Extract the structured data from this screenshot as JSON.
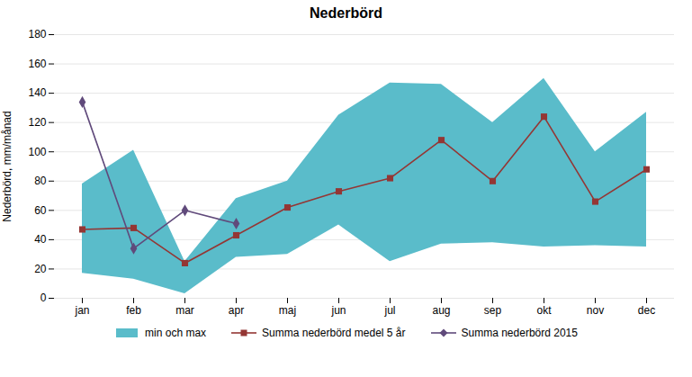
{
  "chart_data": {
    "type": "line",
    "title": "Nederbörd",
    "ylabel": "Nederbörd, mm/månad",
    "categories": [
      "jan",
      "feb",
      "mar",
      "apr",
      "maj",
      "jun",
      "jul",
      "aug",
      "sep",
      "okt",
      "nov",
      "dec"
    ],
    "series": [
      {
        "name": "min och max",
        "type": "area",
        "color": "#5abcca",
        "low": [
          17,
          13,
          3,
          28,
          30,
          50,
          25,
          37,
          38,
          35,
          36,
          35
        ],
        "high": [
          78,
          101,
          25,
          68,
          80,
          125,
          147,
          146,
          120,
          150,
          100,
          127
        ]
      },
      {
        "name": "Summa nederbörd medel 5 år",
        "type": "line",
        "color": "#943634",
        "marker": "square",
        "values": [
          47,
          48,
          24,
          43,
          62,
          73,
          82,
          108,
          80,
          124,
          66,
          88
        ]
      },
      {
        "name": "Summa nederbörd 2015",
        "type": "line",
        "color": "#604a7b",
        "marker": "diamond",
        "values": [
          134,
          34,
          60,
          51,
          null,
          null,
          null,
          null,
          null,
          null,
          null,
          null
        ]
      }
    ],
    "ylim": [
      0,
      180
    ],
    "yticks": [
      0,
      20,
      40,
      60,
      80,
      100,
      120,
      140,
      160,
      180
    ],
    "grid": true,
    "legend": "bottom"
  }
}
